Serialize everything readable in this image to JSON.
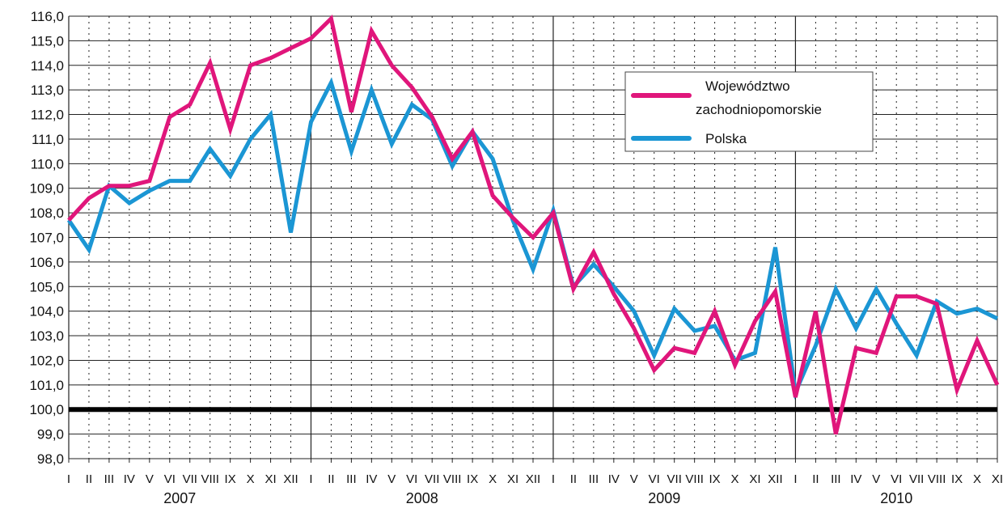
{
  "chart_data": {
    "type": "line",
    "title": "",
    "xlabel": "",
    "ylabel": "",
    "ylim": [
      98.0,
      116.0
    ],
    "y_ticks": [
      "98,0",
      "99,0",
      "100,0",
      "101,0",
      "102,0",
      "103,0",
      "104,0",
      "105,0",
      "106,0",
      "107,0",
      "108,0",
      "109,0",
      "110,0",
      "111,0",
      "112,0",
      "113,0",
      "114,0",
      "115,0",
      "116,0"
    ],
    "reference_line": 100.0,
    "grid": true,
    "legend_position": "top-right",
    "years": [
      "2007",
      "2008",
      "2009",
      "2010"
    ],
    "month_labels": [
      "I",
      "II",
      "III",
      "IV",
      "V",
      "VI",
      "VII",
      "VIII",
      "IX",
      "X",
      "XI",
      "XII",
      "I",
      "II",
      "III",
      "IV",
      "V",
      "VI",
      "VII",
      "VIII",
      "IX",
      "X",
      "XI",
      "XII",
      "I",
      "II",
      "III",
      "IV",
      "V",
      "VI",
      "VII",
      "VIII",
      "IX",
      "X",
      "XI",
      "XII",
      "I",
      "II",
      "III",
      "IV",
      "V",
      "VI",
      "VII",
      "VIII",
      "IX",
      "X",
      "XI"
    ],
    "series": [
      {
        "name": "Województwo zachodniopomorskie",
        "color": "#e0167b",
        "values": [
          107.7,
          108.6,
          109.1,
          109.1,
          109.3,
          111.9,
          112.4,
          114.1,
          111.4,
          114.0,
          114.3,
          114.7,
          115.1,
          115.9,
          112.1,
          115.4,
          114.0,
          113.1,
          111.9,
          110.2,
          111.3,
          108.7,
          107.8,
          107.0,
          108.0,
          104.9,
          106.4,
          104.7,
          103.3,
          101.6,
          102.5,
          102.3,
          104.0,
          101.8,
          103.6,
          104.8,
          100.5,
          104.0,
          99.0,
          102.5,
          102.3,
          104.6,
          104.6,
          104.3,
          100.8,
          102.8,
          101.0
        ]
      },
      {
        "name": "Polska",
        "color": "#1b96d4",
        "values": [
          107.7,
          106.5,
          109.1,
          108.4,
          108.9,
          109.3,
          109.3,
          110.6,
          109.5,
          111.0,
          112.0,
          107.2,
          111.7,
          113.3,
          110.5,
          113.0,
          110.8,
          112.4,
          111.8,
          109.9,
          111.3,
          110.2,
          107.7,
          105.7,
          108.1,
          105.0,
          105.9,
          105.0,
          104.0,
          102.2,
          104.1,
          103.2,
          103.4,
          102.0,
          102.3,
          106.6,
          100.7,
          102.6,
          104.9,
          103.3,
          104.9,
          103.5,
          102.2,
          104.4,
          103.9,
          104.1,
          103.7
        ]
      }
    ]
  }
}
